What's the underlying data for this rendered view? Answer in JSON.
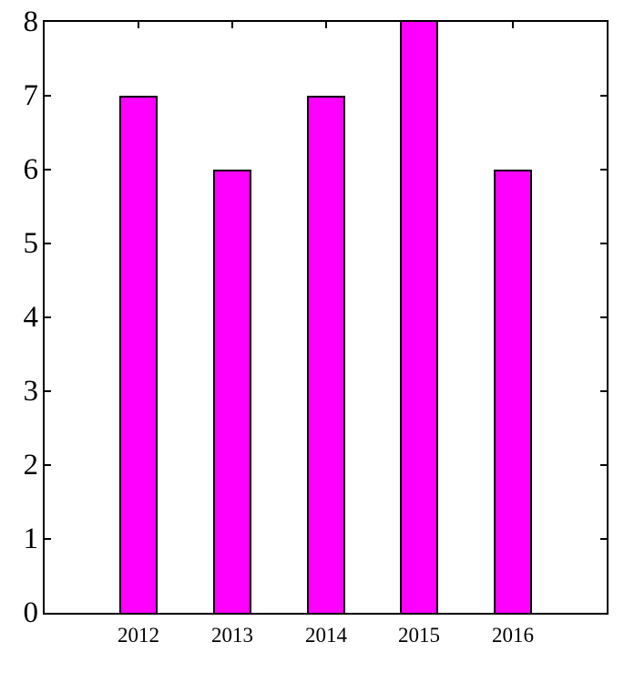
{
  "figure": {
    "background_color": "#FFFFFF"
  },
  "chart_data": {
    "type": "bar",
    "categories": [
      "2012",
      "2013",
      "2014",
      "2015",
      "2016"
    ],
    "values": [
      7,
      6,
      7,
      8,
      6
    ],
    "title": "",
    "xlabel": "",
    "ylabel": "",
    "ylim": [
      0,
      8
    ],
    "yticks": [
      0,
      1,
      2,
      3,
      4,
      5,
      6,
      7,
      8
    ],
    "xlim_units": [
      0,
      6
    ],
    "bar_width_units": 0.4,
    "bar_fill_color": "#FF00FF",
    "bar_edge_color": "#000000",
    "axis_color": "#000000",
    "tick_direction": "in",
    "box": true,
    "grid": false,
    "legend": ""
  }
}
